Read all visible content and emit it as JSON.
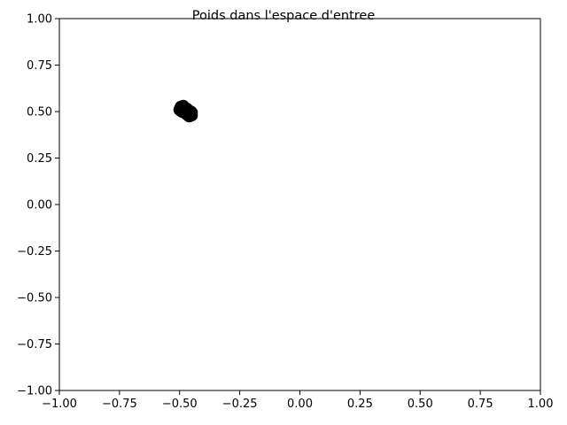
{
  "chart_data": {
    "type": "scatter",
    "title": "Poids dans l'espace d'entree",
    "xlabel": "",
    "ylabel": "",
    "xlim": [
      -1.0,
      1.0
    ],
    "ylim": [
      -1.0,
      1.0
    ],
    "grid": false,
    "x_ticks": [
      "−1.00",
      "−0.75",
      "−0.50",
      "−0.25",
      "0.00",
      "0.25",
      "0.50",
      "0.75",
      "1.00"
    ],
    "y_ticks": [
      "−1.00",
      "−0.75",
      "−0.50",
      "−0.25",
      "0.00",
      "0.25",
      "0.50",
      "0.75",
      "1.00"
    ],
    "x_tick_values": [
      -1.0,
      -0.75,
      -0.5,
      -0.25,
      0.0,
      0.25,
      0.5,
      0.75,
      1.0
    ],
    "y_tick_values": [
      -1.0,
      -0.75,
      -0.5,
      -0.25,
      0.0,
      0.25,
      0.5,
      0.75,
      1.0
    ],
    "series": [
      {
        "color": "#000000",
        "points": [
          {
            "x": -0.495,
            "y": 0.525
          },
          {
            "x": -0.49,
            "y": 0.515
          },
          {
            "x": -0.485,
            "y": 0.52
          },
          {
            "x": -0.48,
            "y": 0.51
          },
          {
            "x": -0.475,
            "y": 0.505
          },
          {
            "x": -0.47,
            "y": 0.5
          },
          {
            "x": -0.465,
            "y": 0.495
          },
          {
            "x": -0.46,
            "y": 0.49
          },
          {
            "x": -0.455,
            "y": 0.485
          },
          {
            "x": -0.45,
            "y": 0.48
          },
          {
            "x": -0.5,
            "y": 0.51
          },
          {
            "x": -0.49,
            "y": 0.5
          },
          {
            "x": -0.48,
            "y": 0.495
          },
          {
            "x": -0.47,
            "y": 0.485
          },
          {
            "x": -0.46,
            "y": 0.475
          },
          {
            "x": -0.485,
            "y": 0.53
          },
          {
            "x": -0.47,
            "y": 0.515
          },
          {
            "x": -0.455,
            "y": 0.5
          },
          {
            "x": -0.45,
            "y": 0.495
          },
          {
            "x": -0.495,
            "y": 0.505
          }
        ]
      }
    ]
  }
}
